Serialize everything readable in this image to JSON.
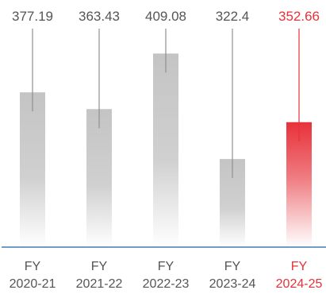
{
  "chart_data": {
    "type": "bar",
    "categories": [
      [
        "FY",
        "2020-21"
      ],
      [
        "FY",
        "2021-22"
      ],
      [
        "FY",
        "2022-23"
      ],
      [
        "FY",
        "2023-24"
      ],
      [
        "FY",
        "2024-25"
      ]
    ],
    "values": [
      377.19,
      363.43,
      409.08,
      322.4,
      352.66
    ],
    "value_labels": [
      "377.19",
      "363.43",
      "409.08",
      "322.4",
      "352.66"
    ],
    "highlight_index": 4,
    "grid": false,
    "legend": "none",
    "colors": {
      "bar": "#c4c4c4",
      "bar_fade": "#ffffff",
      "highlight": "#e8313a",
      "highlight_fade": "#ffffff",
      "label": "#555555",
      "highlight_label": "#e8313a",
      "axis": "#1f5fa8",
      "whisker": "#8f8f8f",
      "highlight_whisker": "#e8313a"
    }
  }
}
